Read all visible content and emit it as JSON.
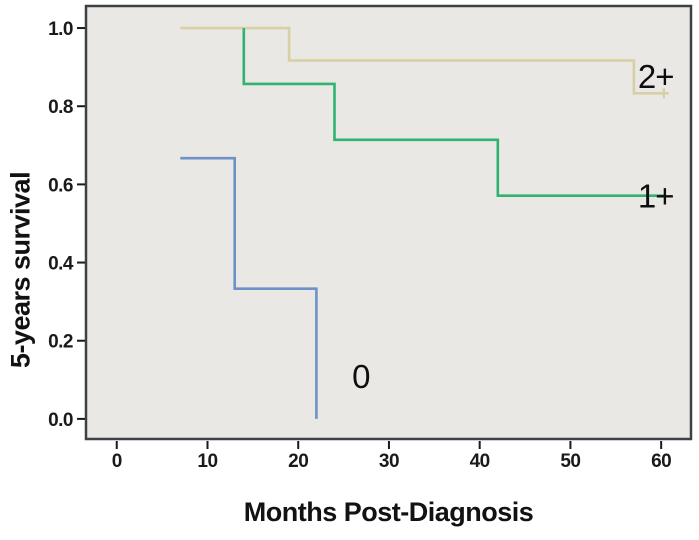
{
  "figure": {
    "background": "#ffffff",
    "text_color": "#121212"
  },
  "chart_data": {
    "type": "line",
    "subtype": "kaplan-meier-step",
    "title": "",
    "xlabel": "Months Post-Diagnosis",
    "ylabel": "5-years survival",
    "x_ticks": [
      "0",
      "10",
      "20",
      "30",
      "40",
      "50",
      "60"
    ],
    "y_ticks": [
      "0.0",
      "0.2",
      "0.4",
      "0.6",
      "0.8",
      "1.0"
    ],
    "xlim": [
      -3.5,
      63.4
    ],
    "ylim": [
      -0.054,
      1.059
    ],
    "grid": false,
    "legend_position": "inline-labels-right",
    "plot_bg": "#e9e8e5",
    "border_color": "#3d4045",
    "tick_color": "#1a1a1a",
    "series": [
      {
        "name": "2+",
        "color": "#d6d0a4",
        "points": [
          [
            7,
            1.0
          ],
          [
            19,
            1.0
          ],
          [
            19,
            0.917
          ],
          [
            57,
            0.917
          ],
          [
            57,
            0.833
          ],
          [
            60.7,
            0.833
          ]
        ],
        "censored": [
          [
            60.3,
            0.833
          ]
        ],
        "label": {
          "text": "2+",
          "x": 59.4,
          "y": 0.877
        }
      },
      {
        "name": "1+",
        "color": "#2fb36e",
        "points": [
          [
            14,
            1.0
          ],
          [
            14,
            0.857
          ],
          [
            24,
            0.857
          ],
          [
            24,
            0.714
          ],
          [
            42,
            0.714
          ],
          [
            42,
            0.571
          ],
          [
            60.5,
            0.571
          ]
        ],
        "censored": [],
        "label": {
          "text": "1+",
          "x": 59.4,
          "y": 0.571
        }
      },
      {
        "name": "0",
        "color": "#6e91c7",
        "points": [
          [
            7,
            0.667
          ],
          [
            13,
            0.667
          ],
          [
            13,
            0.333
          ],
          [
            22,
            0.333
          ],
          [
            22,
            0.0
          ]
        ],
        "censored": [],
        "label": {
          "text": "0",
          "x": 26.9,
          "y": 0.11
        }
      }
    ]
  }
}
